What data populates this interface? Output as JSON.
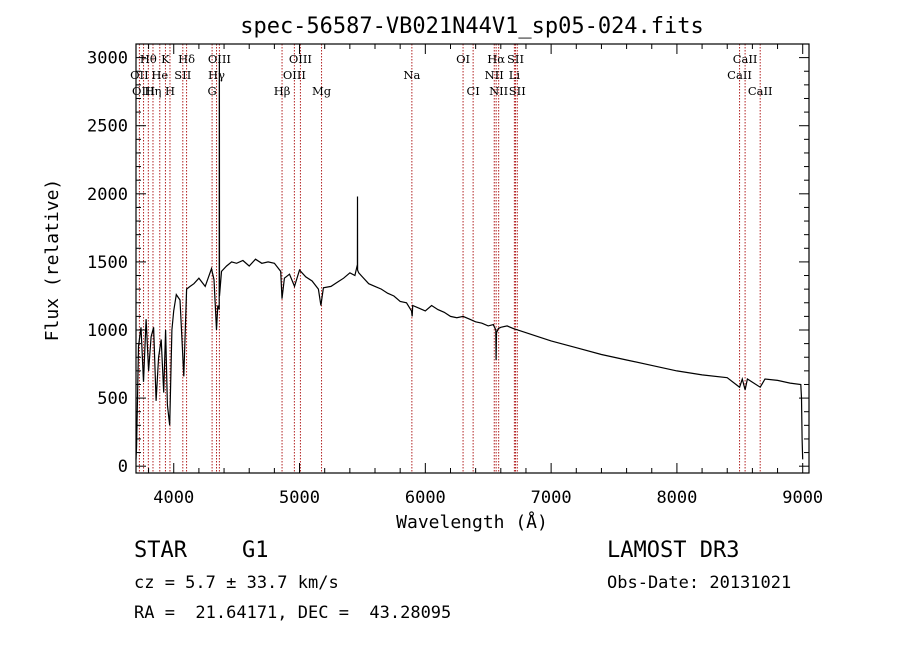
{
  "chart_data": {
    "type": "line",
    "title": "spec-56587-VB021N44V1_sp05-024.fits",
    "xlabel": "Wavelength (Å)",
    "ylabel": "Flux (relative)",
    "xlim": [
      3700,
      9050
    ],
    "ylim": [
      -50,
      3100
    ],
    "xticks": [
      4000,
      5000,
      6000,
      7000,
      8000,
      9000
    ],
    "yticks": [
      0,
      500,
      1000,
      1500,
      2000,
      2500,
      3000
    ],
    "series": [
      {
        "name": "flux",
        "x": [
          3700,
          3705,
          3720,
          3740,
          3760,
          3780,
          3800,
          3820,
          3840,
          3860,
          3880,
          3900,
          3920,
          3935,
          3950,
          3968,
          3985,
          4000,
          4020,
          4050,
          4080,
          4102,
          4130,
          4160,
          4200,
          4250,
          4300,
          4320,
          4340,
          4350,
          4361,
          4362,
          4363,
          4364,
          4380,
          4420,
          4460,
          4500,
          4550,
          4600,
          4650,
          4700,
          4750,
          4800,
          4850,
          4861,
          4880,
          4920,
          4960,
          5000,
          5050,
          5100,
          5150,
          5170,
          5190,
          5250,
          5300,
          5350,
          5400,
          5440,
          5460,
          5461,
          5462,
          5470,
          5500,
          5550,
          5600,
          5650,
          5700,
          5750,
          5800,
          5850,
          5890,
          5896,
          5900,
          5950,
          6000,
          6050,
          6100,
          6150,
          6200,
          6250,
          6300,
          6350,
          6400,
          6450,
          6500,
          6540,
          6560,
          6563,
          6566,
          6580,
          6600,
          6650,
          6700,
          6800,
          6900,
          7000,
          7200,
          7400,
          7600,
          7800,
          8000,
          8200,
          8400,
          8498,
          8520,
          8542,
          8560,
          8662,
          8700,
          8800,
          8900,
          8985,
          8990,
          8995,
          9000
        ],
        "y": [
          50,
          150,
          880,
          1020,
          620,
          1080,
          700,
          950,
          1020,
          480,
          800,
          930,
          540,
          1000,
          450,
          300,
          1000,
          1140,
          1260,
          1220,
          660,
          1300,
          1320,
          1340,
          1380,
          1320,
          1450,
          1370,
          1000,
          1180,
          1150,
          2800,
          3000,
          1250,
          1430,
          1470,
          1500,
          1490,
          1510,
          1470,
          1520,
          1490,
          1500,
          1490,
          1430,
          1230,
          1380,
          1410,
          1320,
          1440,
          1390,
          1360,
          1300,
          1180,
          1310,
          1320,
          1350,
          1380,
          1420,
          1400,
          1480,
          1980,
          1440,
          1420,
          1390,
          1340,
          1320,
          1300,
          1270,
          1250,
          1210,
          1200,
          1140,
          1100,
          1180,
          1160,
          1140,
          1180,
          1150,
          1130,
          1100,
          1090,
          1100,
          1080,
          1060,
          1050,
          1030,
          1040,
          1000,
          780,
          980,
          1010,
          1020,
          1030,
          1010,
          980,
          950,
          920,
          870,
          820,
          780,
          740,
          700,
          670,
          650,
          580,
          640,
          560,
          640,
          580,
          640,
          630,
          610,
          600,
          500,
          200,
          50
        ]
      }
    ],
    "lines_top": [
      {
        "label": "Hθ",
        "x": 3798
      },
      {
        "label": "K",
        "x": 3934
      },
      {
        "label": "Hδ",
        "x": 4102
      },
      {
        "label": "OIII",
        "x": 4363
      },
      {
        "label": "OIII",
        "x": 5007
      },
      {
        "label": "OI",
        "x": 6300
      },
      {
        "label": "Hα",
        "x": 6563
      },
      {
        "label": "SII",
        "x": 6717
      },
      {
        "label": "CaII",
        "x": 8542
      }
    ],
    "lines_mid": [
      {
        "label": "OII",
        "x": 3727
      },
      {
        "label": "He",
        "x": 3889
      },
      {
        "label": "SII",
        "x": 4072
      },
      {
        "label": "Hγ",
        "x": 4340
      },
      {
        "label": "OIII",
        "x": 4959
      },
      {
        "label": "Na",
        "x": 5893
      },
      {
        "label": "NII",
        "x": 6548
      },
      {
        "label": "Li",
        "x": 6708
      },
      {
        "label": "CaII",
        "x": 8498
      }
    ],
    "lines_low": [
      {
        "label": "OIII",
        "x": 3760
      },
      {
        "label": "Hη",
        "x": 3835
      },
      {
        "label": "H",
        "x": 3970
      },
      {
        "label": "G",
        "x": 4305
      },
      {
        "label": "Hβ",
        "x": 4861
      },
      {
        "label": "Mg",
        "x": 5175
      },
      {
        "label": "CI",
        "x": 6380
      },
      {
        "label": "NII",
        "x": 6583
      },
      {
        "label": "SII",
        "x": 6731
      },
      {
        "label": "CaII",
        "x": 8662
      }
    ]
  },
  "info": {
    "class": "STAR",
    "subclass": "G1",
    "survey": "LAMOST DR3",
    "cz": "cz = 5.7 ± 33.7 km/s",
    "obs_date": "Obs-Date: 20131021",
    "radec": "RA =  21.64171, DEC =  43.28095"
  }
}
